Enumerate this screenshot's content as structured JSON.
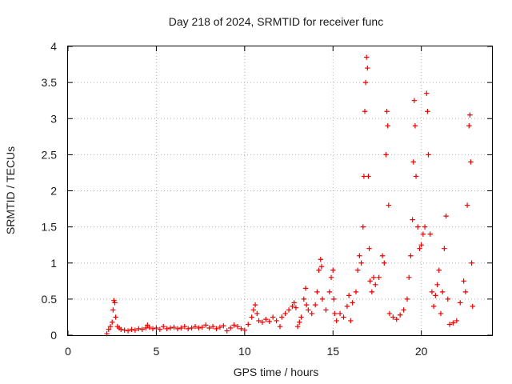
{
  "chart_data": {
    "type": "scatter",
    "title": "Day 218 of 2024, SRMTID for receiver func",
    "xlabel": "GPS time / hours",
    "ylabel": "SRMTID / TECUs",
    "xlim": [
      0,
      24
    ],
    "ylim": [
      0,
      4
    ],
    "xticks": [
      0,
      5,
      10,
      15,
      20
    ],
    "yticks": [
      0,
      0.5,
      1,
      1.5,
      2,
      2.5,
      3,
      3.5,
      4
    ],
    "ytick_labels": [
      "0",
      "0.5",
      "1",
      "1.5",
      "2",
      "2.5",
      "3",
      "3.5",
      "4"
    ],
    "grid": true,
    "marker": "plus",
    "series": [
      {
        "name": "SRMTID",
        "color": "#ee0000",
        "points": [
          [
            2.2,
            0.02
          ],
          [
            2.3,
            0.08
          ],
          [
            2.4,
            0.12
          ],
          [
            2.5,
            0.18
          ],
          [
            2.55,
            0.35
          ],
          [
            2.6,
            0.48
          ],
          [
            2.65,
            0.45
          ],
          [
            2.7,
            0.25
          ],
          [
            2.8,
            0.12
          ],
          [
            2.9,
            0.1
          ],
          [
            3.0,
            0.08
          ],
          [
            3.2,
            0.07
          ],
          [
            3.4,
            0.06
          ],
          [
            3.6,
            0.08
          ],
          [
            3.8,
            0.07
          ],
          [
            4.0,
            0.09
          ],
          [
            4.2,
            0.08
          ],
          [
            4.4,
            0.1
          ],
          [
            4.5,
            0.14
          ],
          [
            4.6,
            0.11
          ],
          [
            4.8,
            0.09
          ],
          [
            5.0,
            0.1
          ],
          [
            5.2,
            0.08
          ],
          [
            5.4,
            0.12
          ],
          [
            5.6,
            0.09
          ],
          [
            5.8,
            0.1
          ],
          [
            6.0,
            0.11
          ],
          [
            6.2,
            0.09
          ],
          [
            6.4,
            0.1
          ],
          [
            6.6,
            0.12
          ],
          [
            6.8,
            0.09
          ],
          [
            7.0,
            0.1
          ],
          [
            7.2,
            0.12
          ],
          [
            7.4,
            0.1
          ],
          [
            7.6,
            0.11
          ],
          [
            7.8,
            0.14
          ],
          [
            8.0,
            0.1
          ],
          [
            8.2,
            0.12
          ],
          [
            8.4,
            0.09
          ],
          [
            8.6,
            0.11
          ],
          [
            8.8,
            0.13
          ],
          [
            9.0,
            0.06
          ],
          [
            9.2,
            0.1
          ],
          [
            9.4,
            0.14
          ],
          [
            9.6,
            0.12
          ],
          [
            9.8,
            0.09
          ],
          [
            10.0,
            0.07
          ],
          [
            10.2,
            0.15
          ],
          [
            10.4,
            0.25
          ],
          [
            10.5,
            0.35
          ],
          [
            10.6,
            0.42
          ],
          [
            10.7,
            0.3
          ],
          [
            10.8,
            0.2
          ],
          [
            11.0,
            0.18
          ],
          [
            11.2,
            0.22
          ],
          [
            11.4,
            0.19
          ],
          [
            11.6,
            0.25
          ],
          [
            11.8,
            0.2
          ],
          [
            12.0,
            0.12
          ],
          [
            12.1,
            0.25
          ],
          [
            12.3,
            0.3
          ],
          [
            12.5,
            0.35
          ],
          [
            12.7,
            0.4
          ],
          [
            12.8,
            0.45
          ],
          [
            12.9,
            0.38
          ],
          [
            13.0,
            0.12
          ],
          [
            13.1,
            0.18
          ],
          [
            13.2,
            0.25
          ],
          [
            13.35,
            0.5
          ],
          [
            13.45,
            0.65
          ],
          [
            13.5,
            0.42
          ],
          [
            13.6,
            0.35
          ],
          [
            13.8,
            0.3
          ],
          [
            14.0,
            0.42
          ],
          [
            14.1,
            0.6
          ],
          [
            14.2,
            0.9
          ],
          [
            14.3,
            1.05
          ],
          [
            14.35,
            0.95
          ],
          [
            14.4,
            0.5
          ],
          [
            14.6,
            0.35
          ],
          [
            14.8,
            0.6
          ],
          [
            14.9,
            0.8
          ],
          [
            15.0,
            0.9
          ],
          [
            15.05,
            0.5
          ],
          [
            15.1,
            0.3
          ],
          [
            15.2,
            0.2
          ],
          [
            15.4,
            0.3
          ],
          [
            15.6,
            0.25
          ],
          [
            15.8,
            0.4
          ],
          [
            15.9,
            0.55
          ],
          [
            16.0,
            0.2
          ],
          [
            16.1,
            0.45
          ],
          [
            16.3,
            0.6
          ],
          [
            16.4,
            0.9
          ],
          [
            16.5,
            1.1
          ],
          [
            16.6,
            1.0
          ],
          [
            16.7,
            1.5
          ],
          [
            16.75,
            2.2
          ],
          [
            16.8,
            3.1
          ],
          [
            16.85,
            3.5
          ],
          [
            16.9,
            3.85
          ],
          [
            16.95,
            3.7
          ],
          [
            17.0,
            2.2
          ],
          [
            17.05,
            1.2
          ],
          [
            17.1,
            0.75
          ],
          [
            17.2,
            0.6
          ],
          [
            17.3,
            0.8
          ],
          [
            17.4,
            0.7
          ],
          [
            17.6,
            0.8
          ],
          [
            17.8,
            1.1
          ],
          [
            17.9,
            1.0
          ],
          [
            18.0,
            2.5
          ],
          [
            18.05,
            3.1
          ],
          [
            18.1,
            2.9
          ],
          [
            18.15,
            1.8
          ],
          [
            18.2,
            0.3
          ],
          [
            18.4,
            0.25
          ],
          [
            18.6,
            0.22
          ],
          [
            18.8,
            0.28
          ],
          [
            19.0,
            0.35
          ],
          [
            19.2,
            0.5
          ],
          [
            19.3,
            0.8
          ],
          [
            19.4,
            1.1
          ],
          [
            19.5,
            1.6
          ],
          [
            19.55,
            2.4
          ],
          [
            19.6,
            3.25
          ],
          [
            19.65,
            2.9
          ],
          [
            19.7,
            2.2
          ],
          [
            19.8,
            1.5
          ],
          [
            19.9,
            1.2
          ],
          [
            20.0,
            1.25
          ],
          [
            20.1,
            1.4
          ],
          [
            20.2,
            1.5
          ],
          [
            20.3,
            3.35
          ],
          [
            20.35,
            3.1
          ],
          [
            20.4,
            2.5
          ],
          [
            20.5,
            1.4
          ],
          [
            20.6,
            0.6
          ],
          [
            20.7,
            0.4
          ],
          [
            20.8,
            0.55
          ],
          [
            20.9,
            0.7
          ],
          [
            21.0,
            0.9
          ],
          [
            21.1,
            0.3
          ],
          [
            21.2,
            0.6
          ],
          [
            21.3,
            1.2
          ],
          [
            21.4,
            1.65
          ],
          [
            21.5,
            0.5
          ],
          [
            21.6,
            0.15
          ],
          [
            21.8,
            0.17
          ],
          [
            22.0,
            0.2
          ],
          [
            22.2,
            0.45
          ],
          [
            22.4,
            0.75
          ],
          [
            22.5,
            0.6
          ],
          [
            22.6,
            1.8
          ],
          [
            22.7,
            2.9
          ],
          [
            22.75,
            3.05
          ],
          [
            22.8,
            2.4
          ],
          [
            22.85,
            1.0
          ],
          [
            22.9,
            0.4
          ]
        ]
      }
    ]
  }
}
